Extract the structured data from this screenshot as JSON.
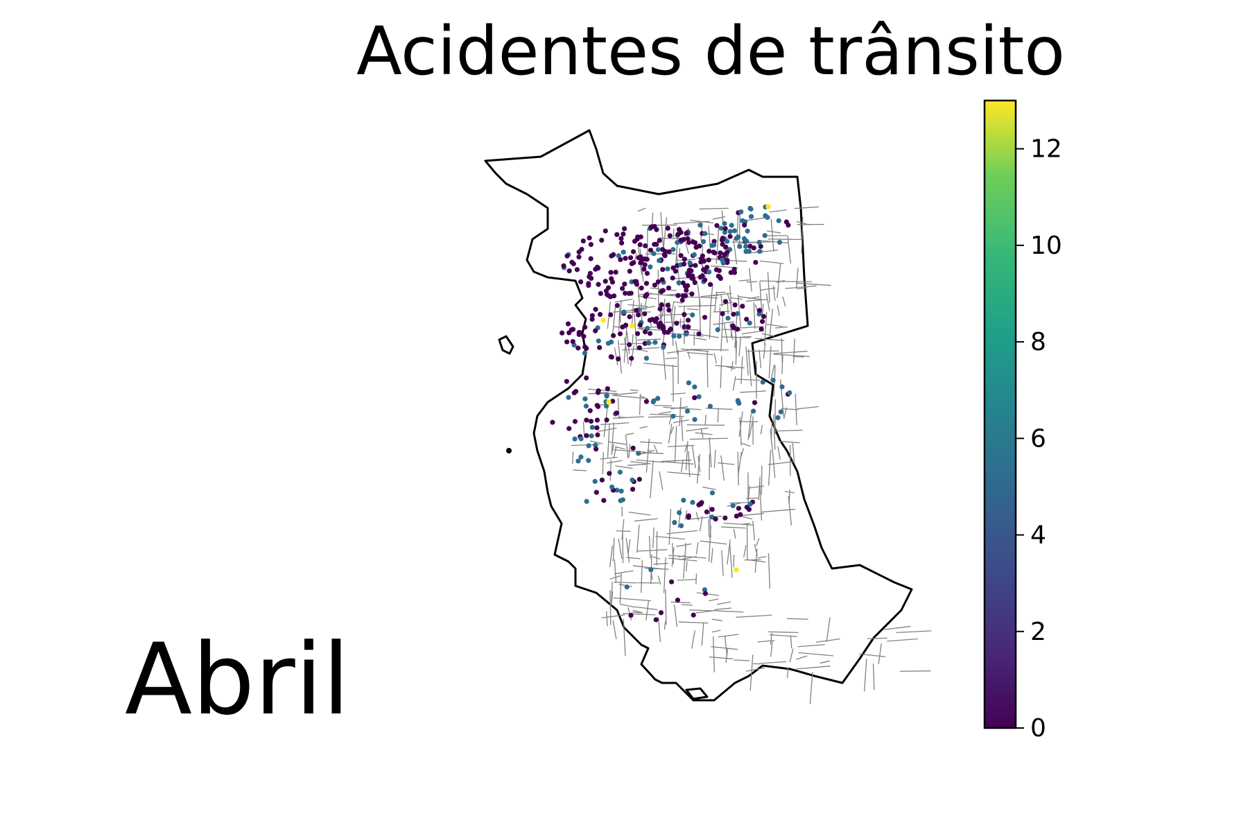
{
  "title": "Acidentes de trânsito",
  "month": "Abril",
  "colorbar": {
    "min": 0,
    "max": 13,
    "ticks": [
      0,
      2,
      4,
      6,
      8,
      10,
      12
    ],
    "tick_labels": [
      "0",
      "2",
      "4",
      "6",
      "8",
      "10",
      "12"
    ],
    "colormap": "viridis"
  },
  "colors": {
    "boundary": "#000000",
    "roads": "#808080",
    "low": "#440154",
    "mid": "#2c6e8e",
    "high": "#fde725"
  },
  "chart_data": {
    "type": "scatter",
    "title": "Acidentes de trânsito",
    "annotation": "Abril",
    "value_range": [
      0,
      13
    ],
    "legend": "colorbar-right",
    "grid": false
  }
}
